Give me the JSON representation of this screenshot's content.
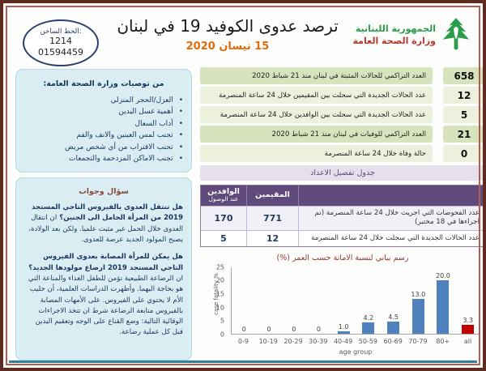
{
  "header": {
    "hotline": {
      "label": "الخط الساخن:",
      "number1": "1214",
      "number2": "01594459"
    },
    "title": "ترصد عدوى الكوفيد 19 في لبنان",
    "date": "15 نيسان 2020",
    "ministry": {
      "line1": "الجمهورية اللبنانية",
      "line2": "وزارة الصحة العامة"
    }
  },
  "recommendations": {
    "title": "من توصيات وزارة الصحة العامة:",
    "items": [
      "العزل/الحجر المنزلي",
      "أهمية غسل اليدين",
      "آداب السعال",
      "تجنب لمس العينين والانف والفم",
      "تجنب الاقتراب من أي شخص مريض",
      "تجنب الاماكن المزدحمة والتجمعات"
    ]
  },
  "qa": {
    "title": "سؤال وجواب",
    "paragraphs": [
      {
        "q": "هل تنتقل العدوى بالفيروس التاجي المستجد 2019 من المرأة الحامل الى الجنين؟",
        "a": "ان انتقال العدوى خلال الحمل غير مثبت علميا. ولكن بعد الولادة، يصبح المولود الجديد عرضة للعدوى."
      },
      {
        "q": "هل يمكن للمرأة المصابة بعدوى الفيروس التاجي المستجد 2019 ارضاع مولودها الجديد؟",
        "a": "ان الرضاعة الطبيعية تؤمن للطفل الغذاء والمناعة التي هو بحاجة اليهما. وأظهرت الدراسات العلمية، أن حليب الأم لا يحتوي على الفيروس. على الأمهات المصابة بالفيروس متابعة الرضاعة شرط ان تتخذ الاجراءات الوقائية التالية: وضع القناع على الوجه وتعقيم اليدين قبل كل عملية رضاعة."
      }
    ]
  },
  "stats": [
    {
      "value": "658",
      "label": "العدد التراكمي للحالات المثبتة في لبنان منذ 21 شباط 2020",
      "emphasis": true
    },
    {
      "value": "12",
      "label": "عدد الحالات الجديدة التي سجلت بين المقيمين خلال 24 ساعة المنصرمة",
      "emphasis": false
    },
    {
      "value": "5",
      "label": "عدد الحالات الجديدة التي سجلت بين الوافدين خلال 24 ساعة المنصرمة",
      "emphasis": false
    },
    {
      "value": "21",
      "label": "العدد التراكمي للوفيات في لبنان منذ 21 شباط 2020",
      "emphasis": true
    },
    {
      "value": "0",
      "label": "حالة وفاة خلال 24 ساعة المنصرمة",
      "emphasis": false
    }
  ],
  "details_table": {
    "caption": "جدول تفصيل الاعداد",
    "col_residents": "المقيمين",
    "col_arrivals": "الوافدين",
    "col_arrivals_sub": "عند الوصول",
    "rows": [
      {
        "label": "عدد الفحوصات التي اجريت خلال 24 ساعة المنصرمة (تم اجراءها في 18 مختبر)",
        "residents": "771",
        "arrivals": "170"
      },
      {
        "label": "عدد الحالات الجديدة التي سجلت خلال 24 ساعة المنصرمة",
        "residents": "12",
        "arrivals": "5"
      }
    ]
  },
  "chart_data": {
    "type": "bar",
    "title": "رسم بياني لنسبة الاماتة حسب العمر (%)",
    "xlabel": "age group",
    "ylabel": "case fatality %",
    "categories": [
      "0-9",
      "10-19",
      "20-29",
      "30-39",
      "40-49",
      "50-59",
      "60-69",
      "70-79",
      "80+",
      "all"
    ],
    "values": [
      0,
      0,
      0,
      0,
      1.0,
      4.2,
      4.5,
      13.0,
      20.0,
      3.3
    ],
    "point_labels": [
      "0",
      "0",
      "0",
      "0",
      "1.0",
      "4.2",
      "4.5",
      "13.0",
      "20.0",
      "3.3"
    ],
    "bar_colors": [
      "#4f81bd",
      "#4f81bd",
      "#4f81bd",
      "#4f81bd",
      "#4f81bd",
      "#4f81bd",
      "#4f81bd",
      "#4f81bd",
      "#4f81bd",
      "#c00000"
    ],
    "ylim": [
      0,
      25
    ],
    "yticks": [
      0,
      5,
      10,
      15,
      20,
      25
    ],
    "grid": false,
    "legend": false
  },
  "colors": {
    "frame": "#5d2b20",
    "inner_frame_line": "#b05e52",
    "accent_orange": "#e36c0a",
    "ministry_green": "#2a9d4a",
    "ministry_red": "#b23a32",
    "stat_row_dark_green": "#d6e3bc",
    "stat_row_light_green": "#ebf1dd",
    "table_header_purple": "#604a7b",
    "caption_lavender": "#e5e0ec",
    "info_box_blue": "#d9edf3",
    "bar_blue": "#4f81bd",
    "bar_red": "#c00000",
    "teal_footer_line": "#2f7f9e"
  }
}
